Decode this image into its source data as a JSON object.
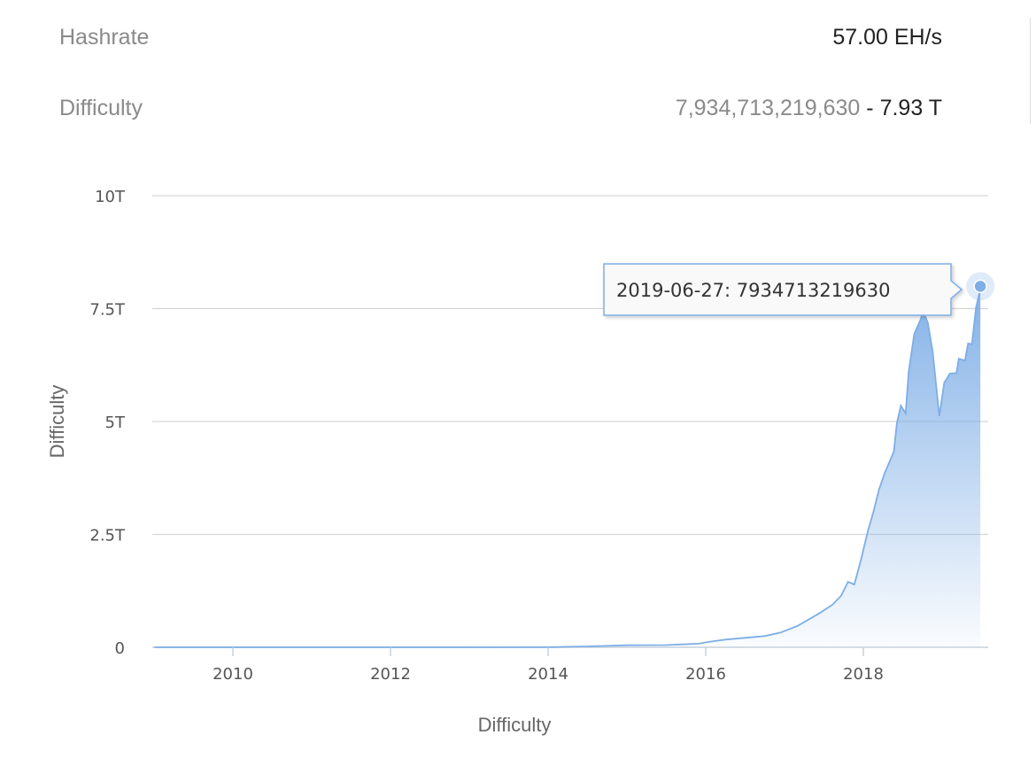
{
  "stats": {
    "hashrate_label": "Hashrate",
    "hashrate_value": "57.00 EH/s",
    "difficulty_label": "Difficulty",
    "difficulty_raw": "7,934,713,219,630",
    "difficulty_sep": " - ",
    "difficulty_short": "7.93 T"
  },
  "chart_data": {
    "type": "area",
    "xlabel": "Difficulty",
    "ylabel": "Difficulty",
    "x_ticks": [
      "2010",
      "2012",
      "2014",
      "2016",
      "2018"
    ],
    "y_ticks": [
      "0",
      "2.5T",
      "5T",
      "7.5T",
      "10T"
    ],
    "ylim": [
      0,
      10000000000000
    ],
    "xlim": [
      "2009-01-03",
      "2019-06-27"
    ],
    "grid": true,
    "color": "#7eaee6",
    "tooltip": "2019-06-27: 7934713219630",
    "unit": "T",
    "points": [
      [
        "2009-01-03",
        0
      ],
      [
        "2011-01-01",
        1e-06
      ],
      [
        "2013-01-01",
        3e-06
      ],
      [
        "2014-01-01",
        0.002
      ],
      [
        "2014-07-01",
        0.02
      ],
      [
        "2015-01-01",
        0.045
      ],
      [
        "2015-07-01",
        0.05
      ],
      [
        "2015-12-01",
        0.08
      ],
      [
        "2016-01-15",
        0.12
      ],
      [
        "2016-04-01",
        0.17
      ],
      [
        "2016-07-01",
        0.21
      ],
      [
        "2016-10-01",
        0.25
      ],
      [
        "2016-12-15",
        0.33
      ],
      [
        "2017-03-01",
        0.47
      ],
      [
        "2017-06-10",
        0.75
      ],
      [
        "2017-08-10",
        0.94
      ],
      [
        "2017-09-20",
        1.14
      ],
      [
        "2017-10-22",
        1.45
      ],
      [
        "2017-11-20",
        1.39
      ],
      [
        "2017-12-20",
        1.92
      ],
      [
        "2018-01-22",
        2.57
      ],
      [
        "2018-02-18",
        3.02
      ],
      [
        "2018-03-14",
        3.49
      ],
      [
        "2018-04-12",
        3.88
      ],
      [
        "2018-05-22",
        4.33
      ],
      [
        "2018-06-06",
        4.98
      ],
      [
        "2018-06-24",
        5.35
      ],
      [
        "2018-07-16",
        5.18
      ],
      [
        "2018-07-30",
        6.1
      ],
      [
        "2018-08-25",
        6.94
      ],
      [
        "2018-09-24",
        7.27
      ],
      [
        "2018-10-05",
        7.45
      ],
      [
        "2018-10-27",
        7.18
      ],
      [
        "2018-11-18",
        6.55
      ],
      [
        "2018-12-19",
        5.12
      ],
      [
        "2019-01-11",
        5.86
      ],
      [
        "2019-02-06",
        6.06
      ],
      [
        "2019-03-08",
        6.07
      ],
      [
        "2019-03-19",
        6.39
      ],
      [
        "2019-04-17",
        6.35
      ],
      [
        "2019-05-01",
        6.73
      ],
      [
        "2019-05-19",
        6.71
      ],
      [
        "2019-06-07",
        7.53
      ],
      [
        "2019-06-27",
        7.9347
      ]
    ]
  }
}
